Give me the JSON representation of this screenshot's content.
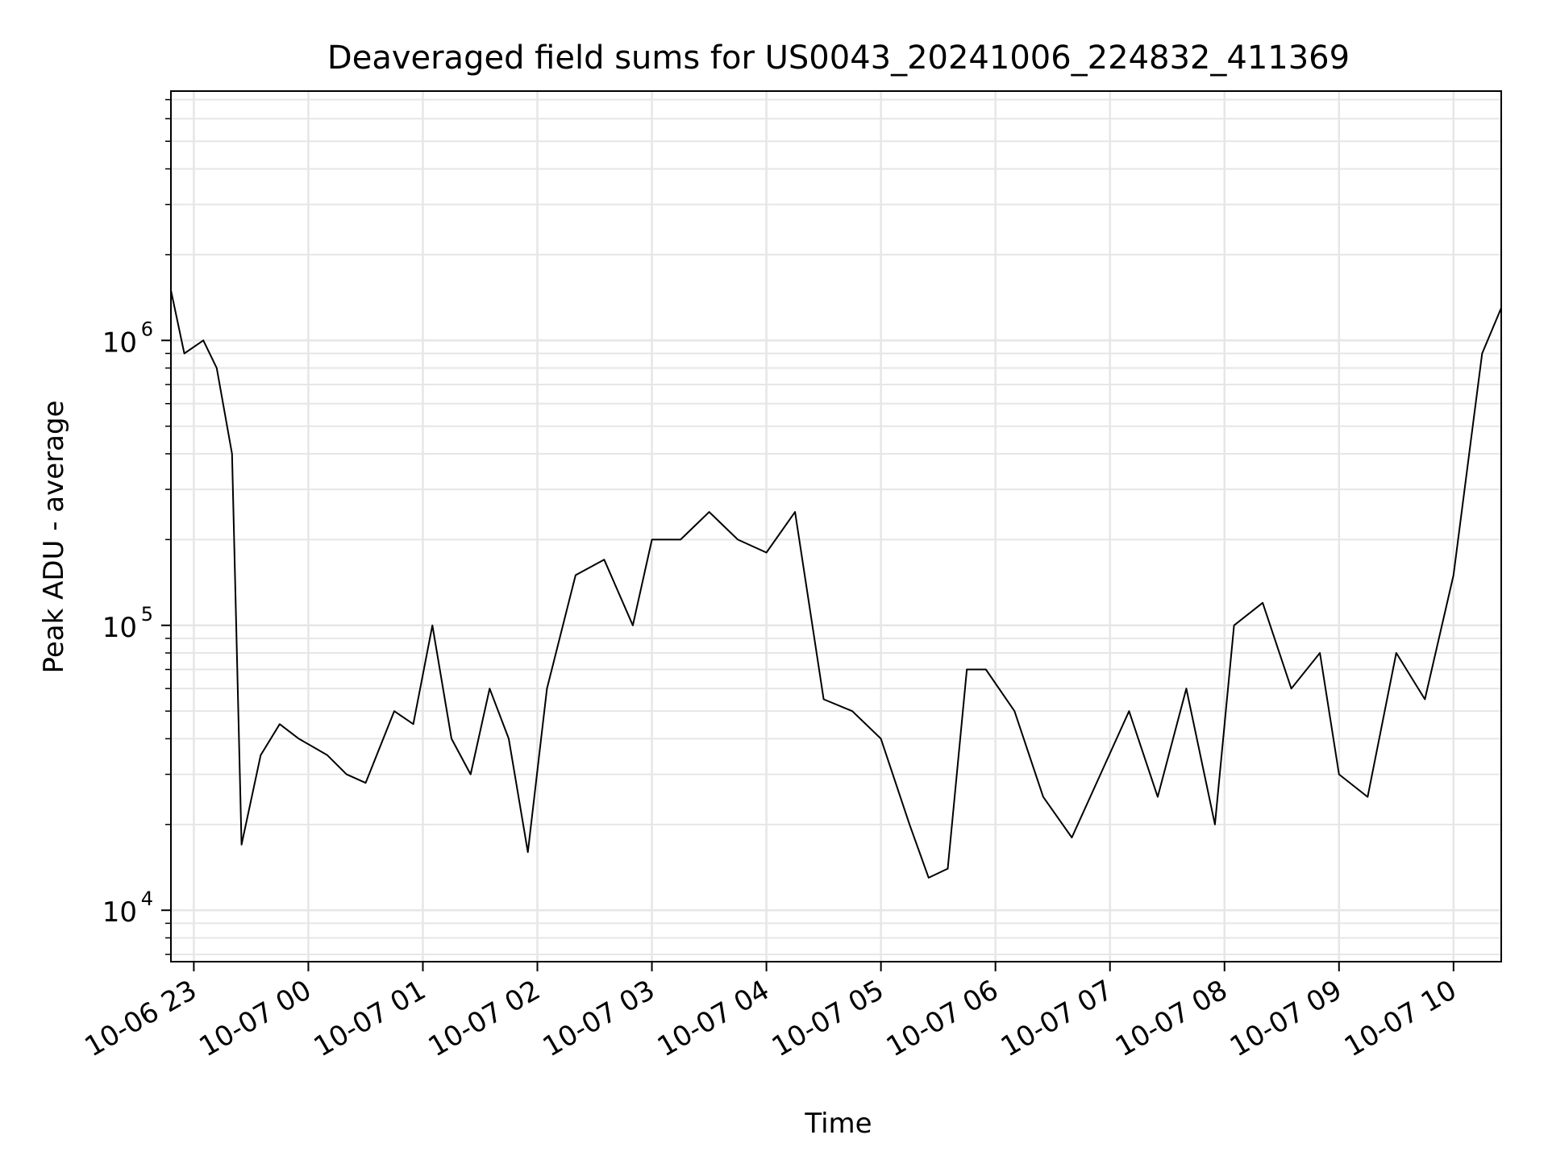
{
  "chart_data": {
    "type": "line",
    "title": "Deaveraged field sums for US0043_20241006_224832_411369",
    "xlabel": "Time",
    "ylabel": "Peak ADU - average",
    "y_scale": "log",
    "ylim": [
      6600,
      7500000
    ],
    "xlim": [
      "2024-10-06 22:48",
      "2024-10-07 10:25"
    ],
    "x_ticks": [
      {
        "t": "2024-10-06 23:00",
        "label": "10-06 23"
      },
      {
        "t": "2024-10-07 00:00",
        "label": "10-07 00"
      },
      {
        "t": "2024-10-07 01:00",
        "label": "10-07 01"
      },
      {
        "t": "2024-10-07 02:00",
        "label": "10-07 02"
      },
      {
        "t": "2024-10-07 03:00",
        "label": "10-07 03"
      },
      {
        "t": "2024-10-07 04:00",
        "label": "10-07 04"
      },
      {
        "t": "2024-10-07 05:00",
        "label": "10-07 05"
      },
      {
        "t": "2024-10-07 06:00",
        "label": "10-07 06"
      },
      {
        "t": "2024-10-07 07:00",
        "label": "10-07 07"
      },
      {
        "t": "2024-10-07 08:00",
        "label": "10-07 08"
      },
      {
        "t": "2024-10-07 09:00",
        "label": "10-07 09"
      },
      {
        "t": "2024-10-07 10:00",
        "label": "10-07 10"
      }
    ],
    "y_ticks": [
      {
        "value": 10000,
        "base": "10",
        "exp": "4"
      },
      {
        "value": 100000,
        "base": "10",
        "exp": "5"
      },
      {
        "value": 1000000,
        "base": "10",
        "exp": "6"
      }
    ],
    "grid": true,
    "line_color": "#000000",
    "grid_color": "#e6e6e6",
    "series": [
      {
        "x": [
          "2024-10-06 22:48",
          "2024-10-06 22:55",
          "2024-10-06 23:05",
          "2024-10-06 23:12",
          "2024-10-06 23:20",
          "2024-10-06 23:25",
          "2024-10-06 23:35",
          "2024-10-06 23:45",
          "2024-10-06 23:55",
          "2024-10-07 00:10",
          "2024-10-07 00:20",
          "2024-10-07 00:30",
          "2024-10-07 00:45",
          "2024-10-07 00:55",
          "2024-10-07 01:05",
          "2024-10-07 01:15",
          "2024-10-07 01:25",
          "2024-10-07 01:35",
          "2024-10-07 01:45",
          "2024-10-07 01:55",
          "2024-10-07 02:05",
          "2024-10-07 02:20",
          "2024-10-07 02:35",
          "2024-10-07 02:50",
          "2024-10-07 03:00",
          "2024-10-07 03:15",
          "2024-10-07 03:30",
          "2024-10-07 03:45",
          "2024-10-07 04:00",
          "2024-10-07 04:15",
          "2024-10-07 04:30",
          "2024-10-07 04:45",
          "2024-10-07 05:00",
          "2024-10-07 05:15",
          "2024-10-07 05:25",
          "2024-10-07 05:35",
          "2024-10-07 05:45",
          "2024-10-07 05:55",
          "2024-10-07 06:10",
          "2024-10-07 06:25",
          "2024-10-07 06:40",
          "2024-10-07 06:55",
          "2024-10-07 07:10",
          "2024-10-07 07:25",
          "2024-10-07 07:40",
          "2024-10-07 07:55",
          "2024-10-07 08:05",
          "2024-10-07 08:20",
          "2024-10-07 08:35",
          "2024-10-07 08:50",
          "2024-10-07 09:00",
          "2024-10-07 09:15",
          "2024-10-07 09:30",
          "2024-10-07 09:45",
          "2024-10-07 10:00",
          "2024-10-07 10:15",
          "2024-10-07 10:25"
        ],
        "y": [
          1500000,
          900000,
          1000000,
          800000,
          400000,
          17000,
          35000,
          45000,
          40000,
          35000,
          30000,
          28000,
          50000,
          45000,
          100000,
          40000,
          30000,
          60000,
          40000,
          16000,
          60000,
          150000,
          170000,
          100000,
          200000,
          200000,
          250000,
          200000,
          180000,
          250000,
          55000,
          50000,
          40000,
          20000,
          13000,
          14000,
          70000,
          70000,
          50000,
          25000,
          18000,
          30000,
          50000,
          25000,
          60000,
          20000,
          100000,
          120000,
          60000,
          80000,
          30000,
          25000,
          80000,
          55000,
          150000,
          900000,
          1300000
        ]
      }
    ]
  }
}
